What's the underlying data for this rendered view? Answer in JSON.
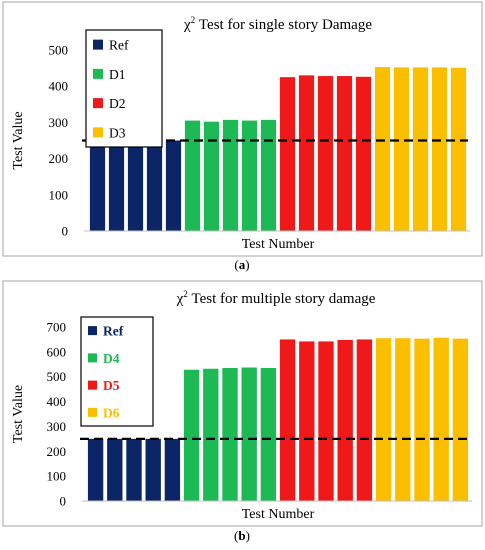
{
  "chart_data": [
    {
      "type": "bar",
      "title_symbol": "χ",
      "title_superscript": "2",
      "title_rest": " Test for single story Damage",
      "xlabel": "Test Number",
      "ylabel": "Test Value",
      "ylim": [
        0,
        500
      ],
      "yticks": [
        0,
        100,
        200,
        300,
        400,
        500
      ],
      "threshold": 250,
      "grid": false,
      "legend_placement": "top-left",
      "legend_bold": false,
      "legend_label_colors": false,
      "panel_label": "(a)",
      "series": [
        {
          "name": "Ref",
          "color": "#0b2566",
          "values": [
            250,
            250,
            250,
            250,
            250
          ]
        },
        {
          "name": "D1",
          "color": "#1db954",
          "values": [
            305,
            302,
            307,
            305,
            307
          ]
        },
        {
          "name": "D2",
          "color": "#f01919",
          "values": [
            425,
            430,
            428,
            428,
            426
          ]
        },
        {
          "name": "D3",
          "color": "#fbbf00",
          "values": [
            453,
            452,
            452,
            452,
            451
          ]
        }
      ]
    },
    {
      "type": "bar",
      "title_symbol": "χ",
      "title_superscript": "2",
      "title_rest": " Test for multiple story damage",
      "xlabel": "Test Number",
      "ylabel": "Test Value",
      "ylim": [
        0,
        700
      ],
      "yticks": [
        0,
        100,
        200,
        300,
        400,
        500,
        600,
        700
      ],
      "threshold": 250,
      "grid": false,
      "legend_placement": "top-left",
      "legend_bold": true,
      "legend_label_colors": true,
      "panel_label": "(b)",
      "series": [
        {
          "name": "Ref",
          "color": "#0b2566",
          "values": [
            250,
            250,
            250,
            250,
            250
          ]
        },
        {
          "name": "D4",
          "color": "#1db954",
          "values": [
            528,
            532,
            535,
            537,
            535
          ]
        },
        {
          "name": "D5",
          "color": "#f01919",
          "values": [
            650,
            642,
            642,
            648,
            650
          ]
        },
        {
          "name": "D6",
          "color": "#fbbf00",
          "values": [
            655,
            655,
            653,
            657,
            653
          ]
        }
      ]
    }
  ]
}
